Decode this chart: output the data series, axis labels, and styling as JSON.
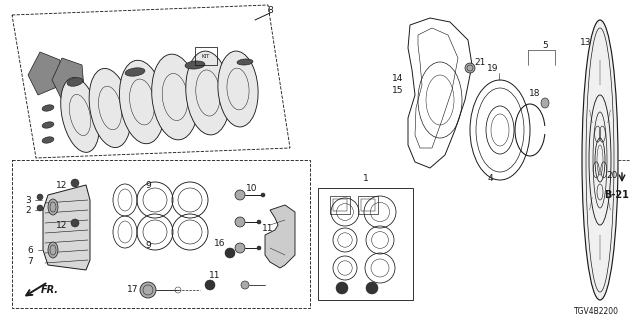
{
  "diagram_code": "TGV4B2200",
  "section": "B-21",
  "background": "#ffffff",
  "line_color": "#1a1a1a",
  "line_width": 0.7,
  "font_size_label": 6.5
}
